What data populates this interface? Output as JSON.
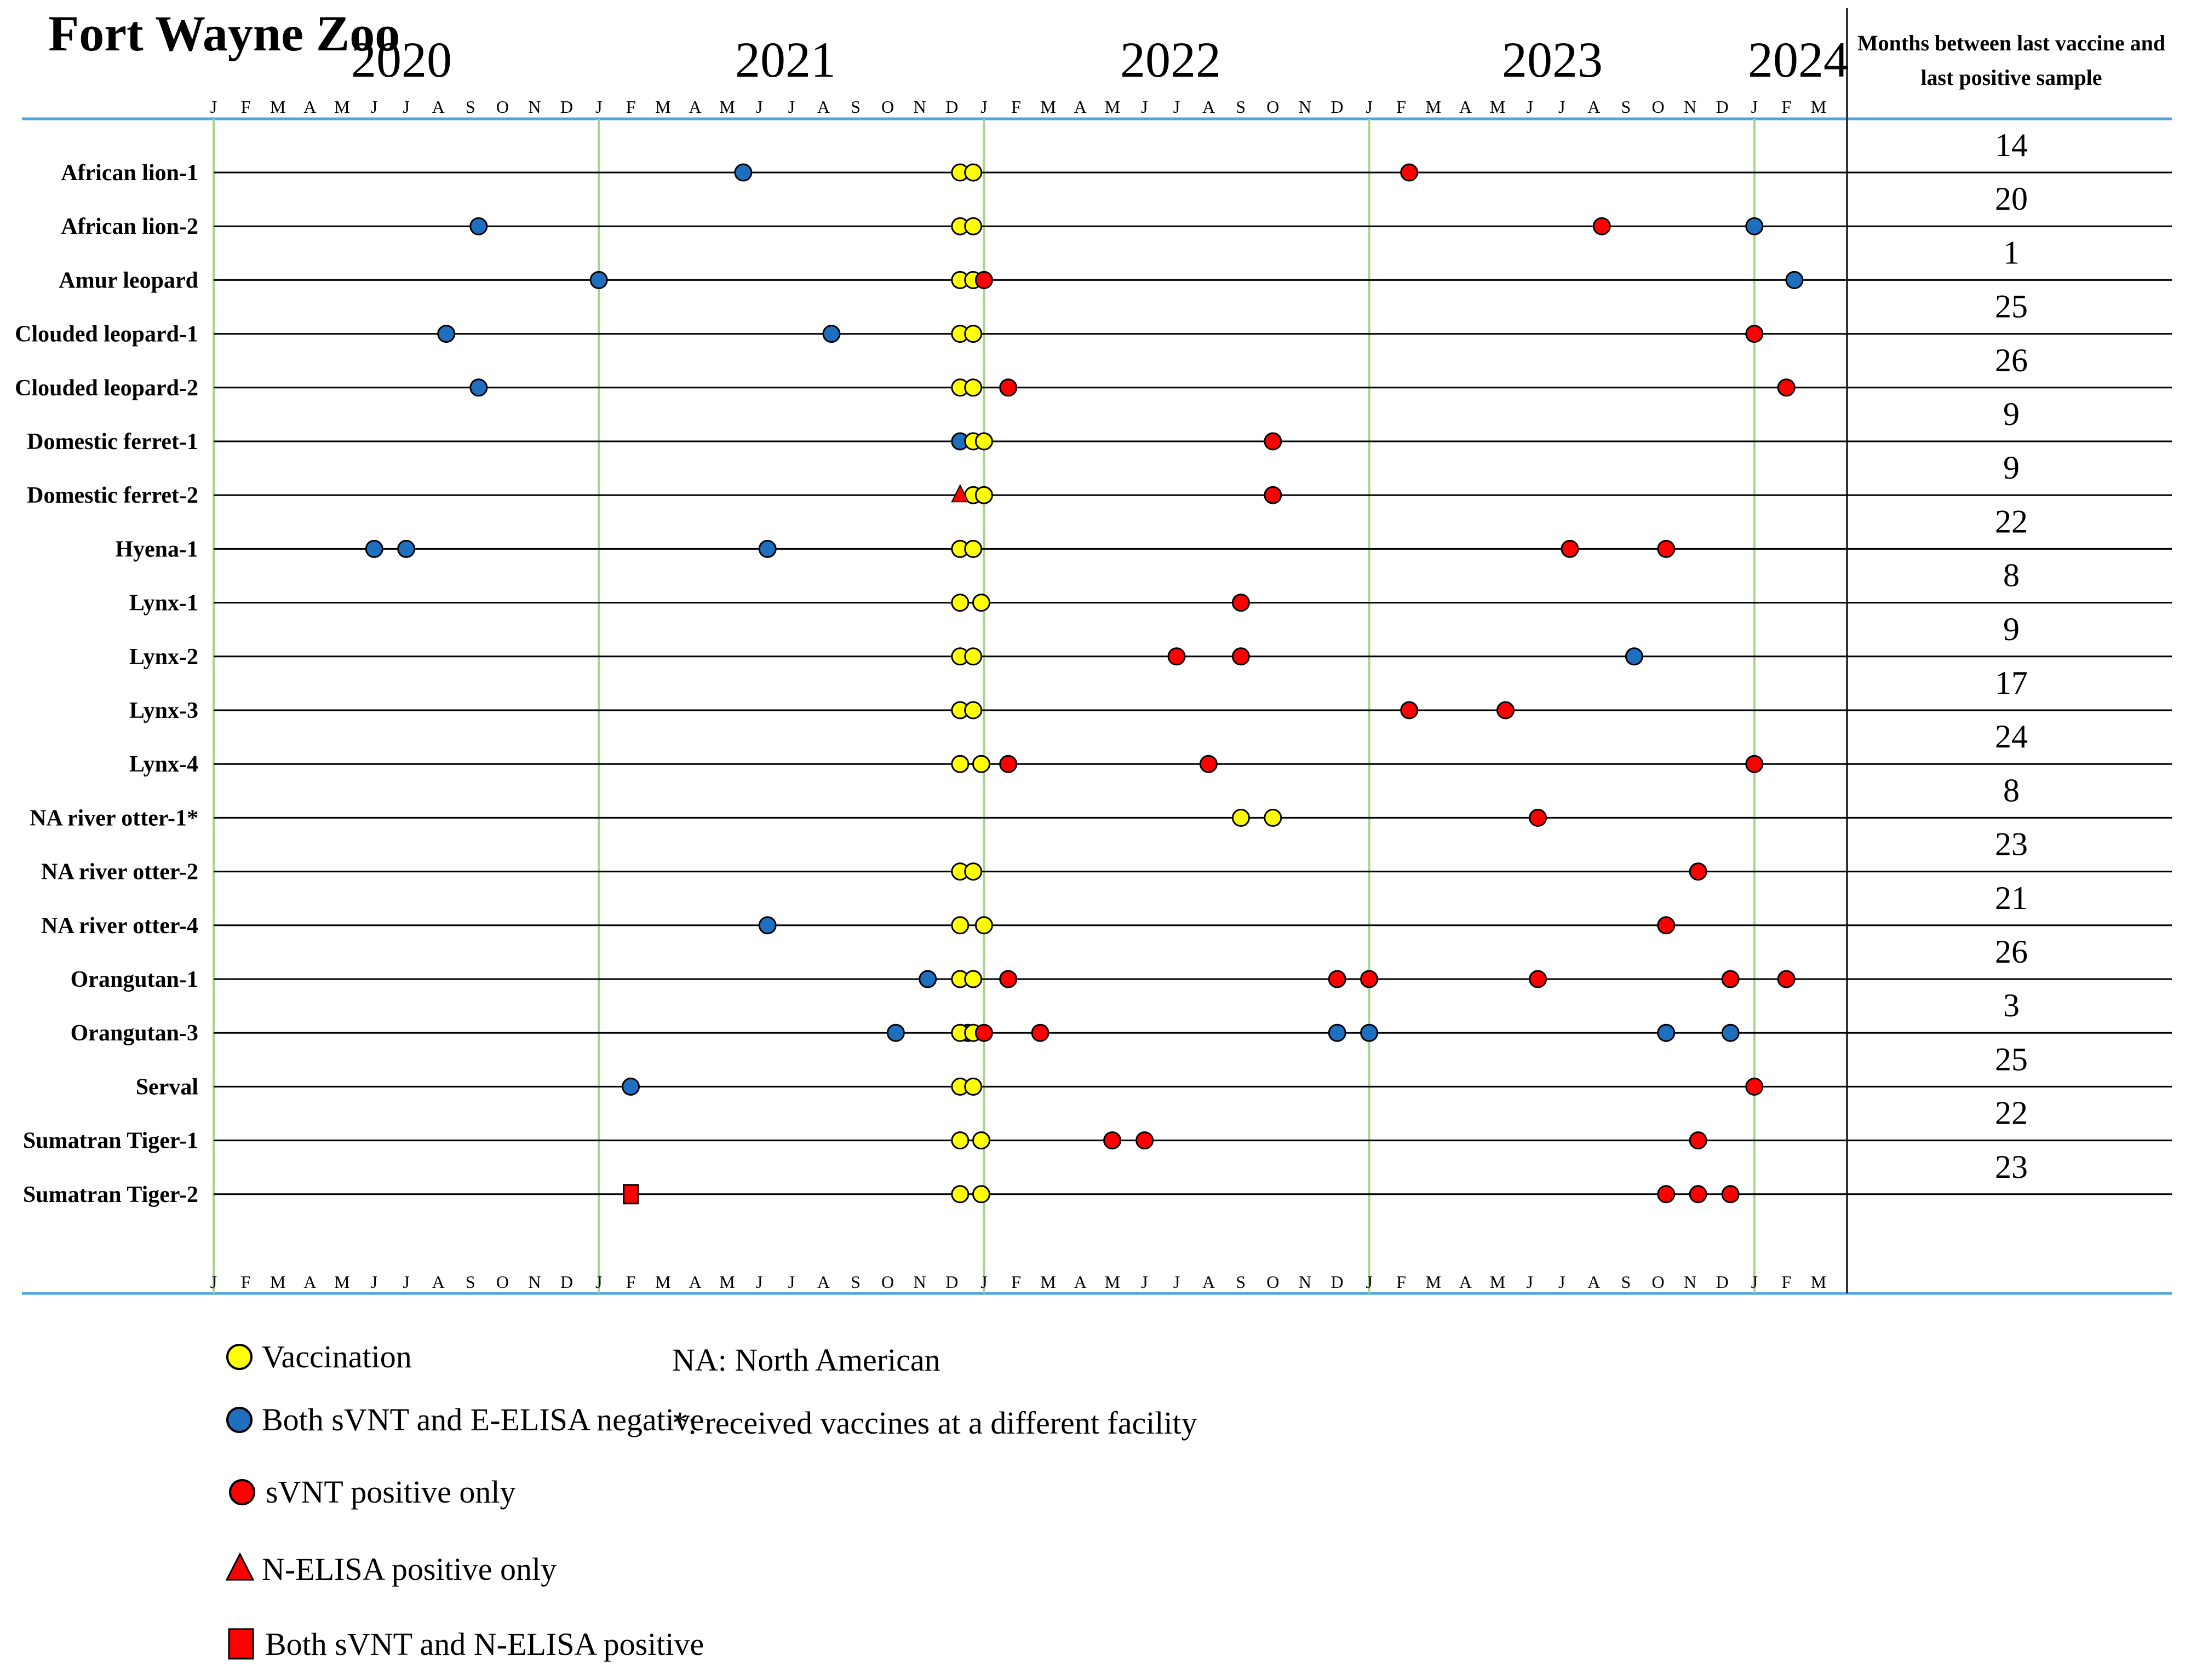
{
  "chart_data": {
    "type": "timeline",
    "title": "Fort Wayne Zoo",
    "years": [
      "2020",
      "2021",
      "2022",
      "2023",
      "2024"
    ],
    "month_letters": [
      "J",
      "F",
      "M",
      "A",
      "M",
      "J",
      "J",
      "A",
      "S",
      "O",
      "N",
      "D"
    ],
    "axis_start": "2020-01",
    "axis_end": "2024-03",
    "right_column_header": [
      "Months between last vaccine and",
      "last positive sample"
    ],
    "animals": [
      {
        "name": "African lion-1",
        "vaccination": [
          2021.938,
          2021.972
        ],
        "negative": [
          2021.375
        ],
        "svnt_positive": [
          2023.104
        ],
        "n_elisa_positive": [],
        "both_positive": []
      },
      {
        "name": "African lion-2",
        "vaccination": [
          2021.938,
          2021.972
        ],
        "negative": [
          2020.688,
          2024.0
        ],
        "svnt_positive": [
          2023.604
        ],
        "n_elisa_positive": [],
        "both_positive": []
      },
      {
        "name": "Amur leopard",
        "vaccination": [
          2021.938,
          2021.972
        ],
        "negative": [
          2021.0,
          2024.104
        ],
        "svnt_positive": [
          2022.0
        ],
        "n_elisa_positive": [],
        "both_positive": []
      },
      {
        "name": "Clouded leopard-1",
        "vaccination": [
          2021.938,
          2021.972
        ],
        "negative": [
          2020.604,
          2021.604
        ],
        "svnt_positive": [
          2024.0
        ],
        "n_elisa_positive": [],
        "both_positive": []
      },
      {
        "name": "Clouded leopard-2",
        "vaccination": [
          2021.938,
          2021.972
        ],
        "negative": [
          2020.688
        ],
        "svnt_positive": [
          2022.063,
          2024.083
        ],
        "n_elisa_positive": [],
        "both_positive": []
      },
      {
        "name": "Domestic ferret-1",
        "vaccination": [
          2021.972,
          2022.0
        ],
        "negative": [
          2021.938
        ],
        "svnt_positive": [
          2022.75
        ],
        "n_elisa_positive": [],
        "both_positive": []
      },
      {
        "name": "Domestic ferret-2",
        "vaccination": [
          2021.972,
          2022.0
        ],
        "negative": [],
        "svnt_positive": [
          2022.75
        ],
        "n_elisa_positive": [
          2021.938
        ],
        "both_positive": []
      },
      {
        "name": "Hyena-1",
        "vaccination": [
          2021.938,
          2021.972
        ],
        "negative": [
          2020.417,
          2020.5,
          2021.438
        ],
        "svnt_positive": [
          2023.521,
          2023.771
        ],
        "n_elisa_positive": [],
        "both_positive": []
      },
      {
        "name": "Lynx-1",
        "vaccination": [
          2021.938,
          2021.993
        ],
        "negative": [],
        "svnt_positive": [
          2022.667
        ],
        "n_elisa_positive": [],
        "both_positive": []
      },
      {
        "name": "Lynx-2",
        "vaccination": [
          2021.938,
          2021.972
        ],
        "negative": [
          2023.688
        ],
        "svnt_positive": [
          2022.5,
          2022.667
        ],
        "n_elisa_positive": [],
        "both_positive": []
      },
      {
        "name": "Lynx-3",
        "vaccination": [
          2021.938,
          2021.972
        ],
        "negative": [],
        "svnt_positive": [
          2023.104,
          2023.354
        ],
        "n_elisa_positive": [],
        "both_positive": []
      },
      {
        "name": "Lynx-4",
        "vaccination": [
          2021.938,
          2021.993
        ],
        "negative": [],
        "svnt_positive": [
          2022.063,
          2022.583,
          2024.0
        ],
        "n_elisa_positive": [],
        "both_positive": []
      },
      {
        "name": "NA river otter-1*",
        "vaccination": [
          2022.667,
          2022.75
        ],
        "negative": [],
        "svnt_positive": [
          2023.438
        ],
        "n_elisa_positive": [],
        "both_positive": []
      },
      {
        "name": "NA river otter-2",
        "vaccination": [
          2021.938,
          2021.972
        ],
        "negative": [],
        "svnt_positive": [
          2023.854
        ],
        "n_elisa_positive": [],
        "both_positive": []
      },
      {
        "name": "NA river otter-4",
        "vaccination": [
          2021.938,
          2022.0
        ],
        "negative": [
          2021.438
        ],
        "svnt_positive": [
          2023.771
        ],
        "n_elisa_positive": [],
        "both_positive": []
      },
      {
        "name": "Orangutan-1",
        "vaccination": [
          2021.938,
          2021.972
        ],
        "negative": [
          2021.854
        ],
        "svnt_positive": [
          2022.063,
          2022.917,
          2023.0,
          2023.438,
          2023.938,
          2024.083
        ],
        "n_elisa_positive": [],
        "both_positive": []
      },
      {
        "name": "Orangutan-3",
        "vaccination": [
          2021.938,
          2021.972
        ],
        "negative": [
          2021.771,
          2021.958,
          2022.917,
          2023.0,
          2023.771,
          2023.938
        ],
        "svnt_positive": [
          2022.0,
          2022.146
        ],
        "n_elisa_positive": [],
        "both_positive": []
      },
      {
        "name": "Serval",
        "vaccination": [
          2021.938,
          2021.972
        ],
        "negative": [
          2021.083
        ],
        "svnt_positive": [
          2024.0
        ],
        "n_elisa_positive": [],
        "both_positive": []
      },
      {
        "name": "Sumatran Tiger-1",
        "vaccination": [
          2021.938,
          2021.993
        ],
        "negative": [],
        "svnt_positive": [
          2022.333,
          2022.417,
          2023.854
        ],
        "n_elisa_positive": [],
        "both_positive": []
      },
      {
        "name": "Sumatran Tiger-2",
        "vaccination": [
          2021.938,
          2021.993
        ],
        "negative": [],
        "svnt_positive": [
          2023.771,
          2023.854,
          2023.938
        ],
        "n_elisa_positive": [],
        "both_positive": [
          2021.083
        ]
      }
    ],
    "months_between": [
      "14",
      "20",
      "1",
      "25",
      "26",
      "9",
      "9",
      "22",
      "8",
      "9",
      "17",
      "24",
      "8",
      "23",
      "21",
      "26",
      "3",
      "25",
      "22",
      "23"
    ],
    "legend": {
      "vaccination": "Vaccination",
      "negative": "Both sVNT and E-ELISA negative",
      "svnt_positive": "sVNT positive only",
      "n_elisa_positive": "N-ELISA positive only",
      "both_positive": "Both sVNT and N-ELISA positive"
    },
    "notes": [
      "NA: North American",
      "*: received vaccines at a different facility"
    ],
    "colors": {
      "vaccination": "#ffff00",
      "negative": "#1f6fc1",
      "svnt_positive": "#ff0000",
      "marker_stroke": "#000000",
      "blue_rule": "#4fa6de",
      "year_rule": "#a6d48c",
      "row_line": "#000000"
    }
  }
}
